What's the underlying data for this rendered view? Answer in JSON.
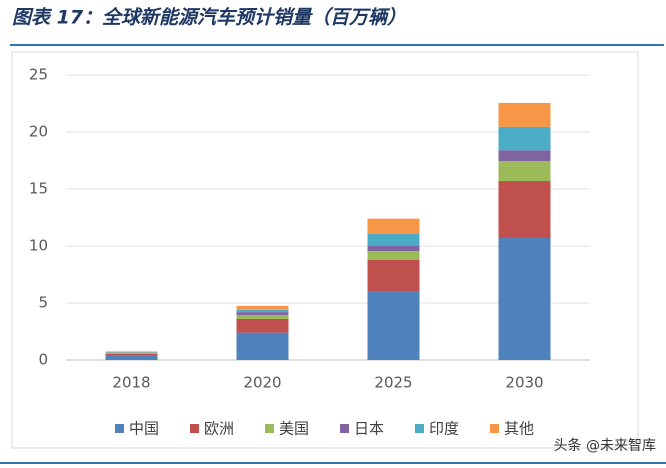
{
  "chart_data": {
    "type": "bar",
    "stacked": true,
    "title": "图表 17：全球新能源汽车预计销量（百万辆）",
    "categories": [
      "2018",
      "2020",
      "2025",
      "2030"
    ],
    "series": [
      {
        "name": "中国",
        "color": "#4f81bd",
        "values": [
          0.4,
          2.4,
          6.0,
          10.7
        ]
      },
      {
        "name": "欧洲",
        "color": "#c0504d",
        "values": [
          0.15,
          1.2,
          2.8,
          5.0
        ]
      },
      {
        "name": "美国",
        "color": "#9bbb59",
        "values": [
          0.1,
          0.35,
          0.75,
          1.75
        ]
      },
      {
        "name": "日本",
        "color": "#8064a2",
        "values": [
          0.03,
          0.25,
          0.45,
          0.95
        ]
      },
      {
        "name": "印度",
        "color": "#4bacc6",
        "values": [
          0.02,
          0.2,
          1.05,
          2.05
        ]
      },
      {
        "name": "其他",
        "color": "#f79646",
        "values": [
          0.05,
          0.35,
          1.35,
          2.1
        ]
      }
    ],
    "ylim": [
      0,
      25
    ],
    "yticks": [
      0,
      5,
      10,
      15,
      20,
      25
    ],
    "grid": true,
    "legend": "bottom"
  },
  "watermark": "头条 @未来智库"
}
